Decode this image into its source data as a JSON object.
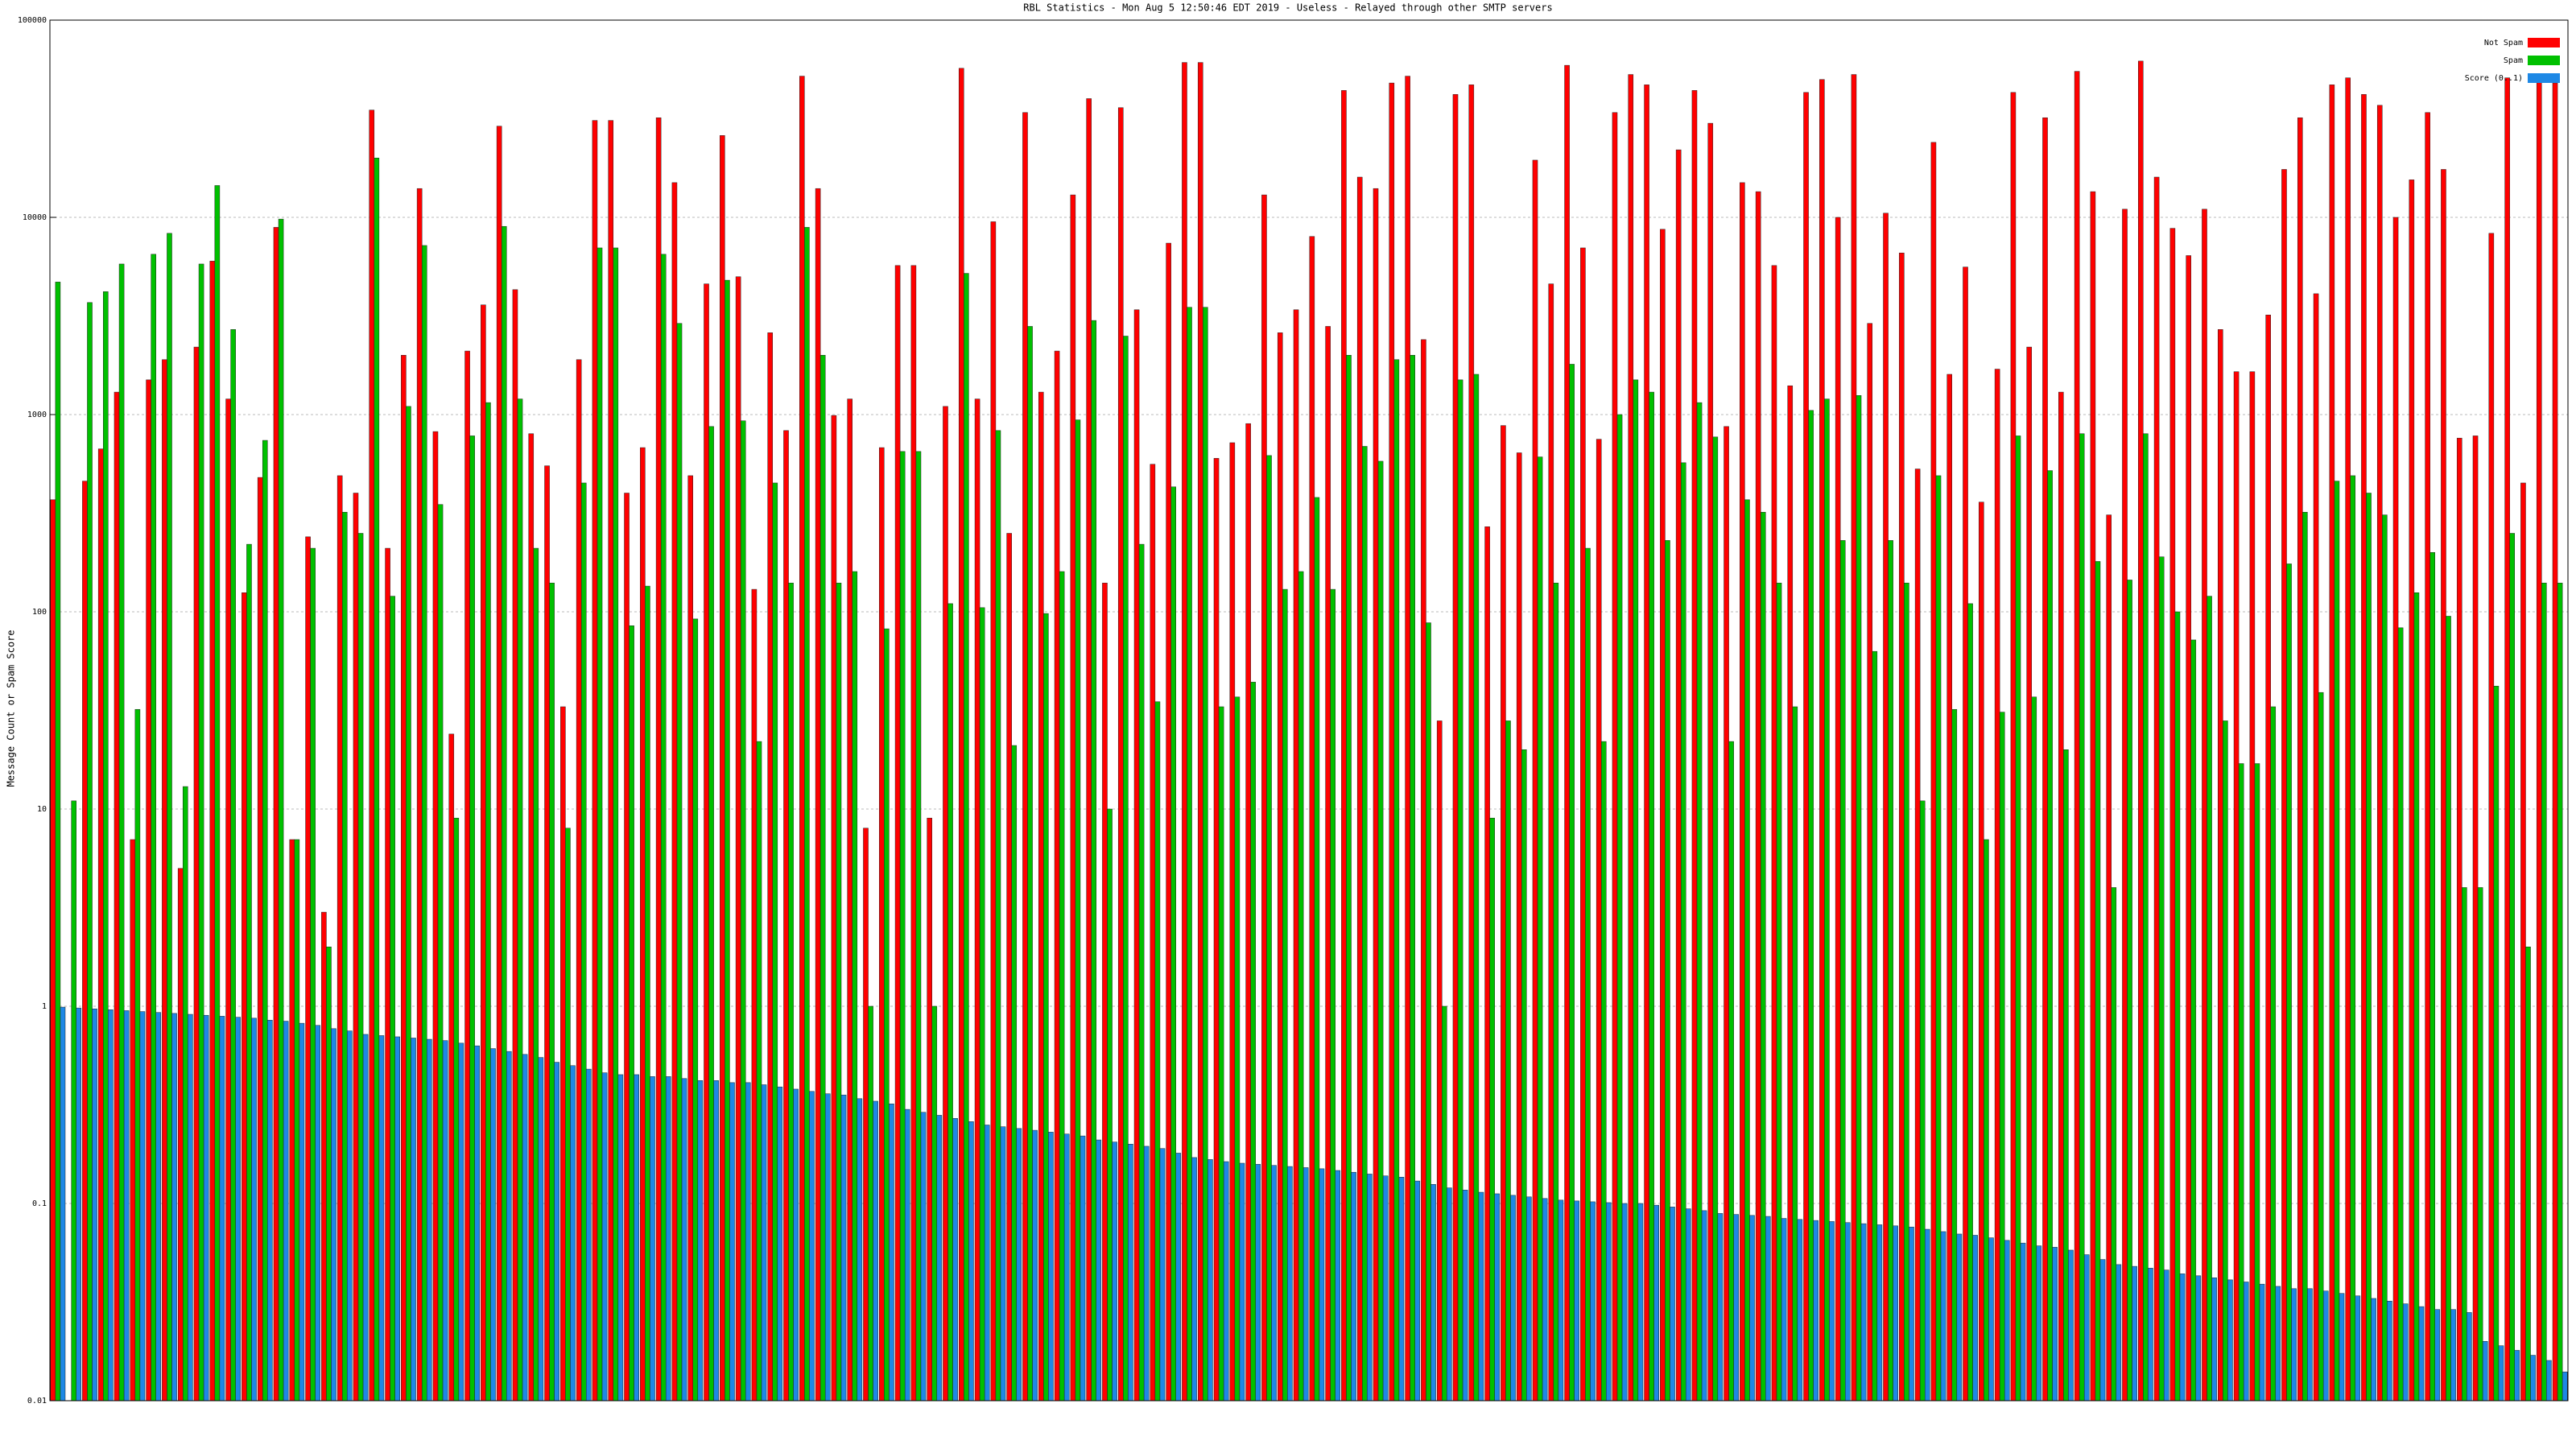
{
  "chart_data": {
    "type": "bar",
    "title": "RBL Statistics - Mon Aug  5 12:50:46 EDT 2019 - Useless - Relayed through other SMTP servers",
    "y_label": "Message Count or Spam Score",
    "log_scale": true,
    "grid": true,
    "legend": "upper right",
    "ylim": [
      0.01,
      100000
    ],
    "yticks": [
      0.01,
      0.1,
      1,
      10,
      100,
      1000,
      10000,
      100000
    ],
    "categories": [
      null,
      null,
      null,
      null,
      null,
      null,
      null,
      null,
      null,
      null,
      null,
      null,
      null,
      null,
      null,
      null,
      null,
      null,
      null,
      null,
      null,
      null,
      null,
      null,
      null,
      null,
      null,
      null,
      null,
      null,
      null,
      null,
      null,
      null,
      null,
      null,
      null,
      null,
      null,
      null,
      null,
      null,
      null,
      null,
      null,
      null,
      null,
      null,
      null,
      null,
      null,
      null,
      null,
      null,
      null,
      null,
      null,
      null,
      null,
      null,
      null,
      null,
      null,
      null,
      null,
      null,
      null,
      null,
      null,
      null,
      null,
      null,
      null,
      null,
      null,
      null,
      null,
      null,
      null,
      null,
      null,
      null,
      null,
      null,
      null,
      null,
      null,
      null,
      null,
      null,
      null,
      null,
      null,
      null,
      null,
      null,
      null,
      null,
      null,
      null,
      null,
      null,
      null,
      null,
      null,
      null,
      null,
      null,
      null,
      null,
      null,
      null,
      null,
      null,
      null,
      null,
      null,
      null,
      null,
      null,
      null,
      null,
      null,
      null,
      null,
      null,
      null,
      null,
      null,
      null,
      null,
      null,
      null,
      null,
      null,
      null,
      null,
      null,
      null,
      null,
      null,
      null,
      null,
      null,
      null,
      null,
      null,
      null,
      null,
      null,
      null,
      null,
      null,
      null,
      null,
      null,
      null,
      null
    ],
    "series": [
      {
        "name": "Not Spam",
        "color": "#ff0000",
        "values": [
          370,
          null,
          460,
          670,
          1300,
          7,
          1500,
          1900,
          5,
          2200,
          6000,
          1200,
          125,
          480,
          8900,
          7,
          240,
          3,
          490,
          400,
          35000,
          210,
          2000,
          14000,
          820,
          24,
          2100,
          3600,
          29000,
          4300,
          800,
          550,
          33,
          1900,
          31000,
          31000,
          400,
          680,
          32000,
          15000,
          490,
          4600,
          26000,
          5000,
          130,
          2600,
          830,
          52000,
          14000,
          990,
          1200,
          8,
          680,
          5700,
          5700,
          9,
          1100,
          57000,
          1200,
          9500,
          250,
          34000,
          1300,
          2100,
          13000,
          40000,
          140,
          36000,
          3400,
          560,
          7400,
          61000,
          61000,
          600,
          720,
          900,
          13000,
          2600,
          3400,
          8000,
          2800,
          44000,
          16000,
          14000,
          48000,
          52000,
          2400,
          28,
          42000,
          47000,
          270,
          880,
          640,
          19500,
          4600,
          59000,
          7000,
          750,
          34000,
          53000,
          47000,
          8700,
          22000,
          44000,
          30000,
          870,
          15000,
          13500,
          5700,
          1400,
          43000,
          50000,
          10000,
          53000,
          2900,
          10500,
          6600,
          530,
          24000,
          1600,
          5600,
          360,
          1700,
          43000,
          2200,
          32000,
          1300,
          55000,
          13500,
          310,
          11000,
          62000,
          16000,
          8800,
          6400,
          11000,
          2700,
          1650,
          1650,
          3200,
          17500,
          32000,
          4100,
          47000,
          51000,
          42000,
          37000,
          10000,
          15500,
          34000,
          17500,
          760,
          780,
          8300,
          51000,
          450,
          51000,
          48000
        ]
      },
      {
        "name": "Spam",
        "color": "#00c000",
        "values": [
          4700,
          11,
          3700,
          4200,
          5800,
          32,
          6500,
          8300,
          13,
          5800,
          14500,
          2700,
          220,
          740,
          9800,
          7,
          210,
          2,
          320,
          250,
          20000,
          120,
          1100,
          7200,
          350,
          9,
          780,
          1150,
          9000,
          1200,
          210,
          140,
          8,
          450,
          7000,
          7000,
          85,
          135,
          6500,
          2900,
          92,
          870,
          4800,
          930,
          22,
          450,
          140,
          8900,
          2000,
          140,
          160,
          1,
          82,
          650,
          650,
          1,
          110,
          5200,
          105,
          830,
          21,
          2800,
          98,
          160,
          940,
          3000,
          10,
          2500,
          220,
          35,
          430,
          3500,
          3500,
          33,
          37,
          44,
          620,
          130,
          160,
          380,
          130,
          2000,
          690,
          580,
          1900,
          2000,
          88,
          1,
          1500,
          1600,
          9,
          28,
          20,
          610,
          140,
          1800,
          210,
          22,
          1000,
          1500,
          1300,
          230,
          570,
          1150,
          770,
          22,
          370,
          320,
          140,
          33,
          1050,
          1200,
          230,
          1250,
          63,
          230,
          140,
          11,
          490,
          32,
          110,
          7,
          31,
          780,
          37,
          520,
          20,
          800,
          180,
          4,
          145,
          800,
          190,
          100,
          72,
          120,
          28,
          17,
          17,
          33,
          175,
          320,
          39,
          460,
          490,
          400,
          310,
          83,
          125,
          200,
          95,
          4,
          4,
          42,
          250,
          2,
          140,
          140
        ]
      },
      {
        "name": "Score (0..1)",
        "color": "#1e88e5",
        "values": [
          0.99,
          0.98,
          0.97,
          0.96,
          0.95,
          0.94,
          0.93,
          0.92,
          0.91,
          0.9,
          0.89,
          0.88,
          0.87,
          0.85,
          0.84,
          0.82,
          0.8,
          0.77,
          0.75,
          0.72,
          0.71,
          0.7,
          0.69,
          0.68,
          0.67,
          0.65,
          0.63,
          0.61,
          0.59,
          0.57,
          0.55,
          0.52,
          0.5,
          0.48,
          0.46,
          0.45,
          0.45,
          0.44,
          0.44,
          0.43,
          0.42,
          0.42,
          0.41,
          0.41,
          0.4,
          0.39,
          0.38,
          0.37,
          0.36,
          0.355,
          0.34,
          0.33,
          0.32,
          0.3,
          0.29,
          0.28,
          0.27,
          0.26,
          0.25,
          0.245,
          0.24,
          0.235,
          0.23,
          0.225,
          0.22,
          0.21,
          0.205,
          0.2,
          0.195,
          0.19,
          0.18,
          0.171,
          0.167,
          0.163,
          0.16,
          0.158,
          0.156,
          0.154,
          0.152,
          0.15,
          0.147,
          0.144,
          0.141,
          0.138,
          0.136,
          0.13,
          0.125,
          0.12,
          0.117,
          0.114,
          0.112,
          0.11,
          0.108,
          0.106,
          0.104,
          0.103,
          0.102,
          0.101,
          0.1,
          0.1,
          0.098,
          0.096,
          0.094,
          0.092,
          0.089,
          0.088,
          0.087,
          0.086,
          0.084,
          0.083,
          0.082,
          0.081,
          0.08,
          0.079,
          0.078,
          0.077,
          0.076,
          0.074,
          0.072,
          0.07,
          0.069,
          0.067,
          0.065,
          0.063,
          0.061,
          0.06,
          0.058,
          0.055,
          0.052,
          0.049,
          0.048,
          0.047,
          0.046,
          0.044,
          0.043,
          0.042,
          0.041,
          0.04,
          0.039,
          0.038,
          0.037,
          0.037,
          0.036,
          0.035,
          0.034,
          0.033,
          0.032,
          0.031,
          0.03,
          0.029,
          0.029,
          0.028,
          0.02,
          0.019,
          0.018,
          0.017,
          0.016,
          0.014
        ]
      }
    ]
  }
}
